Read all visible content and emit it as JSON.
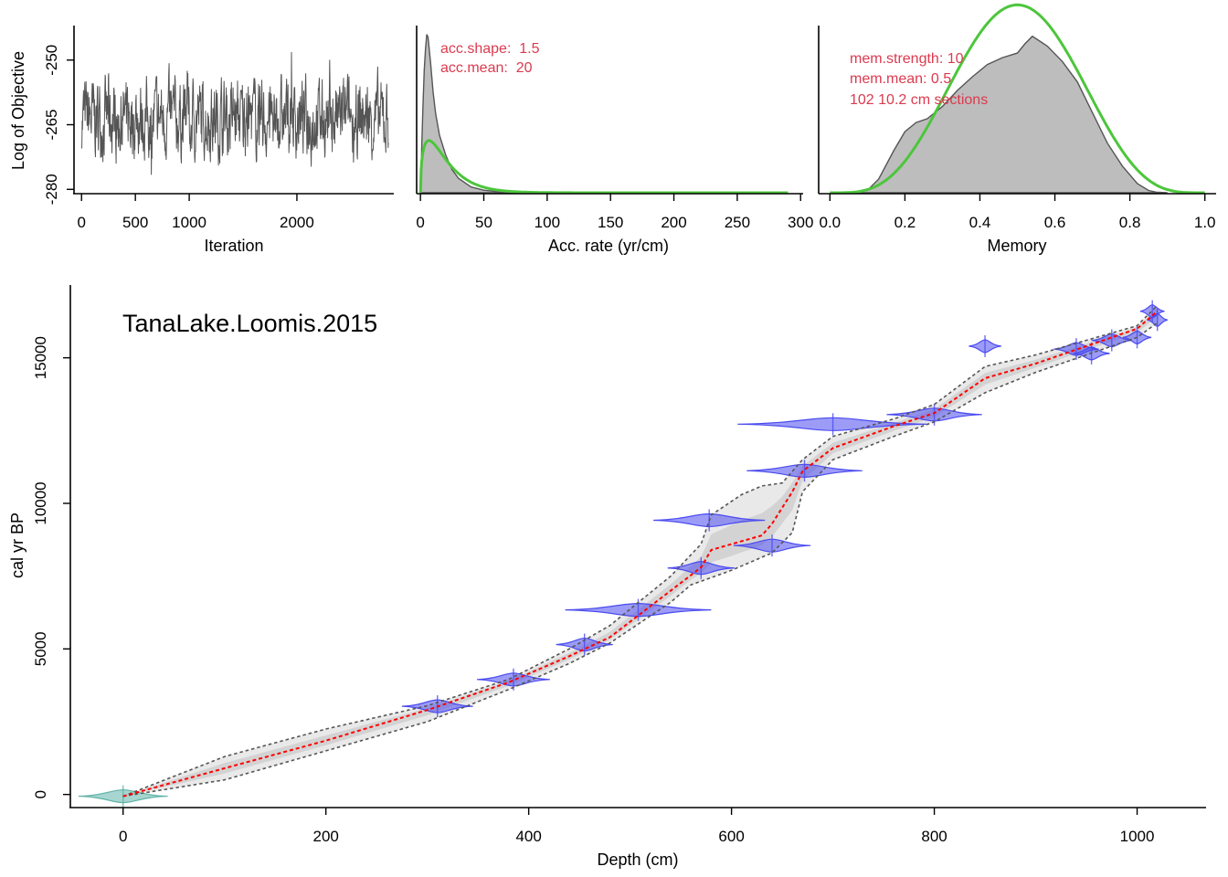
{
  "colors": {
    "trace": "#555555",
    "posterior_fill": "#bdbdbd",
    "posterior_line": "#555555",
    "prior": "#4cc63b",
    "param_text": "#dc3a4f",
    "envelope": "#555555",
    "mean_line": "#ff0000",
    "dates": "#4b4bf0",
    "surface": "#5fb3a8"
  },
  "chart_data": [
    {
      "type": "line",
      "panel": "iteration-trace",
      "xlabel": "Iteration",
      "ylabel": "Log of Objective",
      "xlim": [
        -70,
        2900
      ],
      "ylim": [
        -281,
        -242
      ],
      "xticks": [
        0,
        500,
        1000,
        2000
      ],
      "xtick_labels": [
        "0",
        "500",
        "1000",
        "2000"
      ],
      "yticks": [
        -250,
        -265,
        -280
      ],
      "ytick_labels": [
        "-250",
        "-265",
        "-280"
      ],
      "n_iterations": 2850,
      "y_mean": -263.5,
      "y_range": [
        -281,
        -243
      ]
    },
    {
      "type": "area",
      "panel": "accumulation-rate",
      "xlabel": "Acc. rate (yr/cm)",
      "xlim": [
        -3,
        302
      ],
      "xticks": [
        0,
        50,
        100,
        150,
        200,
        250,
        300
      ],
      "xtick_labels": [
        "0",
        "50",
        "100",
        "150",
        "200",
        "250",
        "300"
      ],
      "annotations": [
        "acc.shape:  1.5",
        "acc.mean:  20"
      ],
      "prior": {
        "distribution": "gamma",
        "shape": 1.5,
        "mean": 20,
        "range": [
          0,
          290
        ]
      },
      "posterior_x": [
        0,
        1,
        2,
        3,
        4,
        5,
        6,
        8,
        10,
        12,
        15,
        20,
        25,
        30,
        40,
        50,
        60,
        80,
        100,
        150,
        200,
        250,
        290
      ],
      "posterior_y": [
        0,
        0.03,
        0.06,
        0.085,
        0.1,
        0.11,
        0.108,
        0.09,
        0.07,
        0.055,
        0.04,
        0.026,
        0.016,
        0.01,
        0.004,
        0.0018,
        0.0008,
        0.0002,
        5e-05,
        0,
        0,
        0,
        0
      ]
    },
    {
      "type": "area",
      "panel": "memory",
      "xlabel": "Memory",
      "xlim": [
        -0.03,
        1.03
      ],
      "xticks": [
        0.0,
        0.2,
        0.4,
        0.6,
        0.8,
        1.0
      ],
      "xtick_labels": [
        "0.0",
        "0.2",
        "0.4",
        "0.6",
        "0.8",
        "1.0"
      ],
      "annotations": [
        "mem.strength: 10",
        "mem.mean: 0.5",
        "102 10.2 cm sections"
      ],
      "prior": {
        "distribution": "beta",
        "strength": 10,
        "mean": 0.5,
        "range": [
          0,
          1
        ]
      },
      "posterior_x": [
        0.05,
        0.1,
        0.13,
        0.17,
        0.2,
        0.23,
        0.26,
        0.3,
        0.34,
        0.38,
        0.42,
        0.46,
        0.5,
        0.52,
        0.54,
        0.58,
        0.62,
        0.66,
        0.7,
        0.74,
        0.78,
        0.82,
        0.85,
        0.87,
        0.9
      ],
      "posterior_y": [
        0,
        0.03,
        0.18,
        0.55,
        0.8,
        0.92,
        0.97,
        1.13,
        1.34,
        1.52,
        1.68,
        1.77,
        1.83,
        1.95,
        2.05,
        1.92,
        1.72,
        1.45,
        1.05,
        0.65,
        0.35,
        0.12,
        0.03,
        0.008,
        0
      ]
    },
    {
      "type": "line",
      "panel": "age-depth",
      "title": "TanaLake.Loomis.2015",
      "xlabel": "Depth (cm)",
      "ylabel": "cal yr BP",
      "xlim": [
        -52,
        1068
      ],
      "ylim": [
        -450,
        17500
      ],
      "xticks": [
        0,
        200,
        400,
        600,
        800,
        1000
      ],
      "xtick_labels": [
        "0",
        "200",
        "400",
        "600",
        "800",
        "1000"
      ],
      "yticks": [
        0,
        5000,
        10000,
        15000
      ],
      "ytick_labels": [
        "0",
        "5000",
        "10000",
        "15000"
      ],
      "mean": {
        "depth": [
          0,
          100,
          200,
          300,
          380,
          440,
          480,
          540,
          570,
          580,
          600,
          630,
          640,
          660,
          670,
          700,
          760,
          800,
          850,
          900,
          950,
          1000,
          1020
        ],
        "age": [
          -60,
          900,
          1850,
          2900,
          3850,
          4750,
          5400,
          7000,
          7800,
          8400,
          8600,
          8900,
          9300,
          10400,
          11100,
          11900,
          12650,
          13100,
          14300,
          14800,
          15400,
          16000,
          16600
        ]
      },
      "min_bound": {
        "depth": [
          0,
          100,
          200,
          300,
          380,
          440,
          480,
          540,
          560,
          600,
          640,
          660,
          670,
          700,
          760,
          800,
          850,
          900,
          950,
          1000,
          1020
        ],
        "age": [
          -60,
          500,
          1500,
          2500,
          3600,
          4500,
          5200,
          6600,
          7200,
          7700,
          8300,
          9000,
          10400,
          11500,
          12300,
          12800,
          13800,
          14500,
          15100,
          15700,
          16200
        ]
      },
      "max_bound": {
        "depth": [
          0,
          100,
          200,
          300,
          380,
          440,
          480,
          540,
          570,
          580,
          610,
          630,
          650,
          670,
          700,
          760,
          800,
          850,
          900,
          950,
          1000,
          1020
        ],
        "age": [
          -60,
          1300,
          2250,
          3050,
          3950,
          5000,
          5800,
          7500,
          8600,
          9600,
          10300,
          10600,
          10700,
          11500,
          12300,
          12900,
          13400,
          14700,
          15100,
          15600,
          16100,
          16800
        ]
      },
      "dates": [
        {
          "depth": 310,
          "age": 3030,
          "spread": 35
        },
        {
          "depth": 385,
          "age": 3950,
          "spread": 36
        },
        {
          "depth": 455,
          "age": 5150,
          "spread": 28
        },
        {
          "depth": 508,
          "age": 6340,
          "spread": 72
        },
        {
          "depth": 570,
          "age": 7780,
          "spread": 33
        },
        {
          "depth": 578,
          "age": 9420,
          "spread": 55
        },
        {
          "depth": 640,
          "age": 8550,
          "spread": 38
        },
        {
          "depth": 672,
          "age": 11120,
          "spread": 57
        },
        {
          "depth": 700,
          "age": 12720,
          "spread": 94
        },
        {
          "depth": 800,
          "age": 13050,
          "spread": 47
        },
        {
          "depth": 850,
          "age": 15400,
          "spread": 16
        },
        {
          "depth": 940,
          "age": 15300,
          "spread": 22
        },
        {
          "depth": 955,
          "age": 15150,
          "spread": 18
        },
        {
          "depth": 975,
          "age": 15600,
          "spread": 20
        },
        {
          "depth": 1000,
          "age": 15700,
          "spread": 14
        },
        {
          "depth": 1015,
          "age": 16600,
          "spread": 12
        },
        {
          "depth": 1020,
          "age": 16300,
          "spread": 10
        }
      ],
      "surface": {
        "depth": 0,
        "age": -60,
        "spread": 44
      }
    }
  ]
}
